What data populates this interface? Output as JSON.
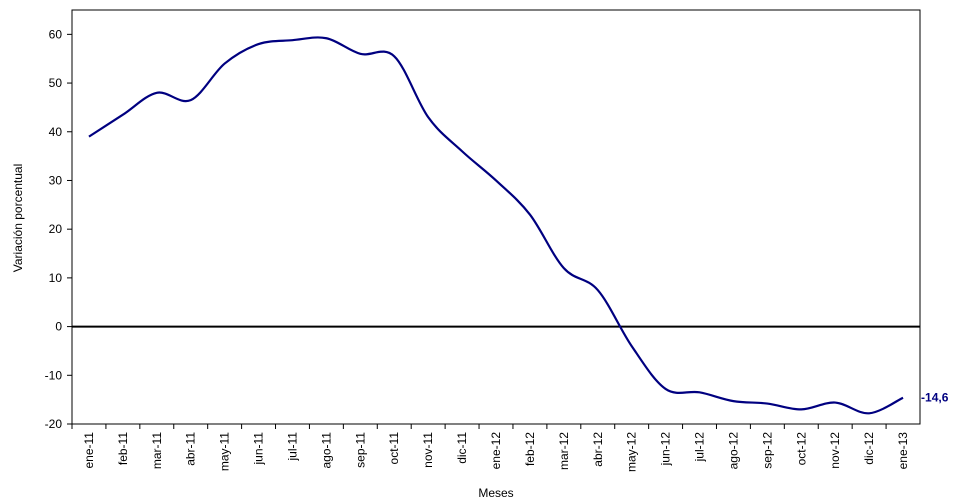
{
  "chart_data": {
    "type": "line",
    "y_label": "Variación porcentual",
    "x_label": "Meses",
    "categories": [
      "ene-11",
      "feb-11",
      "mar-11",
      "abr-11",
      "may-11",
      "jun-11",
      "jul-11",
      "ago-11",
      "sep-11",
      "oct-11",
      "nov-11",
      "dic-11",
      "ene-12",
      "feb-12",
      "mar-12",
      "abr-12",
      "may-12",
      "jun-12",
      "jul-12",
      "ago-12",
      "sep-12",
      "oct-12",
      "nov-12",
      "dic-12",
      "ene-13"
    ],
    "series": [
      {
        "color": "#000080",
        "values": [
          39,
          43.5,
          48,
          46.5,
          54,
          58,
          58.8,
          59.2,
          56,
          55.5,
          43,
          36,
          30,
          23,
          12,
          7.5,
          -4,
          -12.8,
          -13.5,
          -15.3,
          -15.8,
          -17,
          -15.6,
          -17.8,
          -14.6
        ],
        "value_labels": [
          null,
          null,
          null,
          null,
          null,
          null,
          null,
          null,
          null,
          null,
          null,
          null,
          null,
          null,
          null,
          null,
          null,
          null,
          null,
          null,
          null,
          null,
          null,
          null,
          "-14,6"
        ]
      }
    ],
    "ylim": [
      -20,
      65
    ],
    "yticks": [
      -20,
      -10,
      0,
      10,
      20,
      30,
      40,
      50,
      60
    ],
    "grid": false
  }
}
